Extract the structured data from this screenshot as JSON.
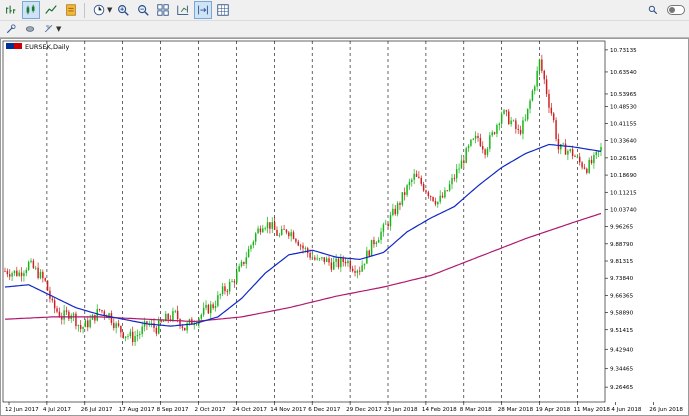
{
  "toolbar": {
    "buttons": [
      {
        "name": "bar-chart-icon",
        "active": false
      },
      {
        "name": "candlestick-chart-icon",
        "active": true
      },
      {
        "name": "line-chart-icon",
        "active": false
      },
      {
        "name": "template-icon",
        "active": false
      },
      {
        "name": "periods-icon",
        "active": false
      },
      {
        "name": "zoom-in-icon",
        "active": false
      },
      {
        "name": "zoom-out-icon",
        "active": false
      },
      {
        "name": "tile-windows-icon",
        "active": false
      },
      {
        "name": "chart-shift-icon",
        "active": false
      },
      {
        "name": "autoscroll-icon",
        "active": true
      },
      {
        "name": "grid-icon",
        "active": false
      }
    ],
    "secondary": [
      {
        "name": "crosshair-tool-icon"
      },
      {
        "name": "erase-tool-icon"
      },
      {
        "name": "objects-menu-icon"
      }
    ],
    "right": [
      {
        "name": "search-icon"
      },
      {
        "name": "toggle-switch"
      }
    ]
  },
  "chart": {
    "symbol_title": "EURSEK,Daily",
    "flag_colors": [
      "#003399",
      "#cc0000"
    ]
  },
  "chart_data": {
    "type": "candlestick",
    "title": "EURSEK,Daily",
    "y_ticks": [
      "10.73135",
      "10.63540",
      "10.53965",
      "10.48530",
      "10.41155",
      "10.33640",
      "10.26165",
      "10.18690",
      "10.11215",
      "10.03740",
      "9.96265",
      "9.88790",
      "9.81315",
      "9.73840",
      "9.66365",
      "9.58890",
      "9.51415",
      "9.42940",
      "9.34465",
      "9.26465"
    ],
    "ylim": [
      9.2,
      10.77
    ],
    "x_ticks": [
      "12 Jun 2017",
      "4 Jul 2017",
      "26 Jul 2017",
      "17 Aug 2017",
      "8 Sep 2017",
      "2 Oct 2017",
      "24 Oct 2017",
      "14 Nov 2017",
      "6 Dec 2017",
      "29 Dec 2017",
      "23 Jan 2018",
      "14 Feb 2018",
      "8 Mar 2018",
      "28 Mar 2018",
      "19 Apr 2018",
      "11 May 2018",
      "4 Jun 2018",
      "26 Jun 2018"
    ],
    "price_path": [
      [
        0,
        9.77
      ],
      [
        6,
        9.76
      ],
      [
        10,
        9.8
      ],
      [
        14,
        9.76
      ],
      [
        17,
        9.72
      ],
      [
        20,
        9.62
      ],
      [
        24,
        9.57
      ],
      [
        28,
        9.59
      ],
      [
        32,
        9.52
      ],
      [
        36,
        9.55
      ],
      [
        40,
        9.6
      ],
      [
        44,
        9.58
      ],
      [
        47,
        9.53
      ],
      [
        50,
        9.5
      ],
      [
        54,
        9.48
      ],
      [
        57,
        9.5
      ],
      [
        60,
        9.54
      ],
      [
        64,
        9.52
      ],
      [
        68,
        9.56
      ],
      [
        72,
        9.58
      ],
      [
        76,
        9.52
      ],
      [
        79,
        9.55
      ],
      [
        82,
        9.57
      ],
      [
        85,
        9.6
      ],
      [
        88,
        9.62
      ],
      [
        92,
        9.68
      ],
      [
        96,
        9.72
      ],
      [
        100,
        9.79
      ],
      [
        103,
        9.86
      ],
      [
        106,
        9.93
      ],
      [
        109,
        9.98
      ],
      [
        112,
        9.97
      ],
      [
        116,
        9.92
      ],
      [
        119,
        9.95
      ],
      [
        122,
        9.93
      ],
      [
        126,
        9.87
      ],
      [
        129,
        9.84
      ],
      [
        132,
        9.81
      ],
      [
        135,
        9.82
      ],
      [
        138,
        9.8
      ],
      [
        141,
        9.8
      ],
      [
        144,
        9.82
      ],
      [
        147,
        9.79
      ],
      [
        150,
        9.78
      ],
      [
        153,
        9.84
      ],
      [
        156,
        9.9
      ],
      [
        160,
        9.95
      ],
      [
        163,
        10.0
      ],
      [
        166,
        10.05
      ],
      [
        170,
        10.13
      ],
      [
        173,
        10.18
      ],
      [
        176,
        10.15
      ],
      [
        180,
        10.1
      ],
      [
        183,
        10.07
      ],
      [
        186,
        10.1
      ],
      [
        190,
        10.18
      ],
      [
        194,
        10.26
      ],
      [
        197,
        10.32
      ],
      [
        200,
        10.35
      ],
      [
        203,
        10.3
      ],
      [
        206,
        10.36
      ],
      [
        210,
        10.46
      ],
      [
        214,
        10.42
      ],
      [
        217,
        10.37
      ],
      [
        220,
        10.42
      ],
      [
        223,
        10.55
      ],
      [
        225,
        10.63
      ],
      [
        226,
        10.68
      ],
      [
        228,
        10.6
      ],
      [
        230,
        10.5
      ],
      [
        232,
        10.42
      ],
      [
        234,
        10.3
      ],
      [
        237,
        10.3
      ],
      [
        240,
        10.28
      ],
      [
        243,
        10.24
      ],
      [
        246,
        10.22
      ],
      [
        249,
        10.25
      ],
      [
        252,
        10.3
      ]
    ],
    "ma_fast": [
      [
        0,
        9.7
      ],
      [
        10,
        9.71
      ],
      [
        20,
        9.66
      ],
      [
        30,
        9.61
      ],
      [
        40,
        9.58
      ],
      [
        50,
        9.56
      ],
      [
        60,
        9.54
      ],
      [
        70,
        9.53
      ],
      [
        80,
        9.54
      ],
      [
        90,
        9.57
      ],
      [
        100,
        9.65
      ],
      [
        110,
        9.76
      ],
      [
        120,
        9.84
      ],
      [
        130,
        9.86
      ],
      [
        140,
        9.83
      ],
      [
        150,
        9.82
      ],
      [
        160,
        9.85
      ],
      [
        170,
        9.94
      ],
      [
        180,
        10.0
      ],
      [
        190,
        10.05
      ],
      [
        200,
        10.14
      ],
      [
        210,
        10.22
      ],
      [
        220,
        10.28
      ],
      [
        230,
        10.32
      ],
      [
        240,
        10.31
      ],
      [
        252,
        10.29
      ]
    ],
    "ma_slow": [
      [
        0,
        9.56
      ],
      [
        20,
        9.57
      ],
      [
        40,
        9.57
      ],
      [
        60,
        9.56
      ],
      [
        80,
        9.55
      ],
      [
        100,
        9.57
      ],
      [
        120,
        9.61
      ],
      [
        140,
        9.66
      ],
      [
        160,
        9.7
      ],
      [
        180,
        9.75
      ],
      [
        200,
        9.83
      ],
      [
        220,
        9.91
      ],
      [
        240,
        9.98
      ],
      [
        252,
        10.02
      ]
    ],
    "colors": {
      "bull": "#14b514",
      "bear": "#cc1f1f",
      "ma_fast": "#1027c6",
      "ma_slow": "#b0176e",
      "grid": "#000000"
    },
    "grid": true
  }
}
